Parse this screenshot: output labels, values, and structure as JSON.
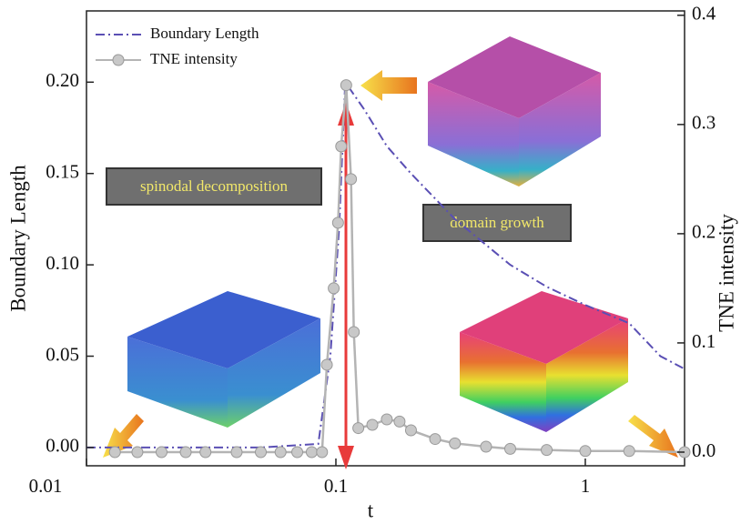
{
  "chart_data": {
    "type": "line",
    "x_label": "t",
    "y_label": "Boundary Length",
    "y2_label": "TNE intensity",
    "xscale": "log",
    "xlim": [
      0.01,
      2.5
    ],
    "xticks": [
      0.01,
      0.1,
      1
    ],
    "ylim": [
      -0.01,
      0.239
    ],
    "yticks": [
      {
        "value": 0,
        "label": "0.00"
      },
      {
        "value": 0.05,
        "label": "0.05"
      },
      {
        "value": 0.1,
        "label": "0.10"
      },
      {
        "value": 0.15,
        "label": "0.15"
      },
      {
        "value": 0.2,
        "label": "0.20"
      }
    ],
    "y2lim": [
      -0.0125,
      0.404
    ],
    "y2ticks": [
      {
        "value": 0,
        "label": "0.0"
      },
      {
        "value": 0.1,
        "label": "0.1"
      },
      {
        "value": 0.2,
        "label": "0.2"
      },
      {
        "value": 0.3,
        "label": "0.3"
      },
      {
        "value": 0.4,
        "label": "0.4"
      }
    ],
    "legend": "upper left",
    "annotations": [
      "spinodal decomposition",
      "domain growth"
    ],
    "series": [
      {
        "name": "Boundary Length",
        "color": "#5a4fb4",
        "style": "dashdot",
        "x": [
          0.01,
          0.05,
          0.085,
          0.095,
          0.103,
          0.109,
          0.13,
          0.16,
          0.2,
          0.3,
          0.5,
          0.7,
          1,
          1.5,
          2,
          2.5
        ],
        "values": [
          0,
          0,
          0.002,
          0.05,
          0.12,
          0.2,
          0.185,
          0.165,
          0.15,
          0.125,
          0.1,
          0.088,
          0.078,
          0.068,
          0.05,
          0.043
        ]
      },
      {
        "name": "TNE intensity",
        "color": "#b4b4b4",
        "axis": "y2",
        "marker": "circle",
        "x": [
          0.013,
          0.016,
          0.02,
          0.025,
          0.03,
          0.04,
          0.05,
          0.06,
          0.07,
          0.08,
          0.088,
          0.092,
          0.098,
          0.102,
          0.105,
          0.11,
          0.115,
          0.118,
          0.123,
          0.14,
          0.16,
          0.18,
          0.2,
          0.25,
          0.3,
          0.4,
          0.5,
          0.7,
          1,
          1.5,
          2.5
        ],
        "values": [
          0,
          0,
          0,
          0,
          0,
          0,
          0,
          0,
          0,
          0,
          0,
          0.08,
          0.15,
          0.21,
          0.28,
          0.336,
          0.25,
          0.11,
          0.022,
          0.025,
          0.03,
          0.028,
          0.02,
          0.012,
          0.008,
          0.005,
          0.003,
          0.002,
          0.001,
          0.001,
          0
        ]
      }
    ]
  }
}
